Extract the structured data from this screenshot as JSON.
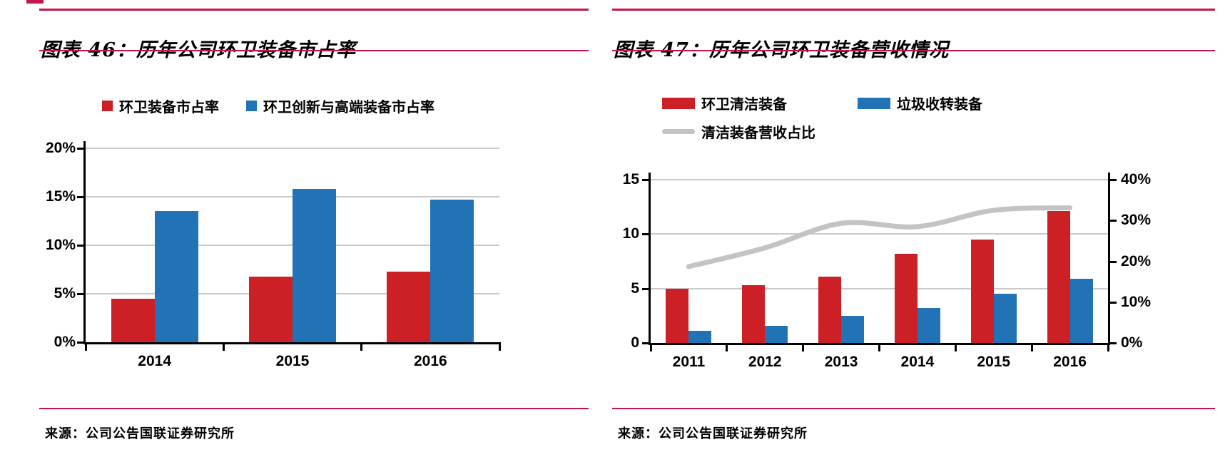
{
  "colors": {
    "red": "#cd2026",
    "blue": "#2273b5",
    "gray_line": "#c3c3c3",
    "rule": "#c41747",
    "gridline": "#c9c9c9",
    "axis": "#000000"
  },
  "chart_data": [
    {
      "type": "bar",
      "title": "图表 46：历年公司环卫装备市占率",
      "categories": [
        "2014",
        "2015",
        "2016"
      ],
      "series": [
        {
          "name": "环卫装备市占率",
          "color_key": "red",
          "values": [
            4.5,
            6.8,
            7.3
          ]
        },
        {
          "name": "环卫创新与高端装备市占率",
          "color_key": "blue",
          "values": [
            13.5,
            15.8,
            14.7
          ]
        }
      ],
      "ylim": [
        0,
        20
      ],
      "yticks": [
        "0%",
        "5%",
        "10%",
        "15%",
        "20%"
      ],
      "grid": true,
      "legend_position": "top",
      "source": "来源：公司公告国联证券研究所"
    },
    {
      "type": "bar+line",
      "title": "图表 47：历年公司环卫装备营收情况",
      "categories": [
        "2011",
        "2012",
        "2013",
        "2014",
        "2015",
        "2016"
      ],
      "series": [
        {
          "name": "环卫清洁装备",
          "kind": "bar",
          "axis": "left",
          "color_key": "red",
          "values": [
            5.0,
            5.3,
            6.1,
            8.2,
            9.5,
            12.1
          ]
        },
        {
          "name": "垃圾收转装备",
          "kind": "bar",
          "axis": "left",
          "color_key": "blue",
          "values": [
            1.1,
            1.6,
            2.5,
            3.2,
            4.5,
            5.9
          ]
        },
        {
          "name": "清洁装备营收占比",
          "kind": "line",
          "axis": "right",
          "color_key": "gray_line",
          "values": [
            18.7,
            23.3,
            29.3,
            28.5,
            32.5,
            33.1
          ]
        }
      ],
      "left_ylim": [
        0,
        15
      ],
      "left_yticks": [
        "0",
        "5",
        "10",
        "15"
      ],
      "right_ylim": [
        0,
        40
      ],
      "right_yticks": [
        "0%",
        "10%",
        "20%",
        "30%",
        "40%"
      ],
      "grid": true,
      "legend_position": "top",
      "source": "来源：公司公告国联证券研究所"
    }
  ]
}
